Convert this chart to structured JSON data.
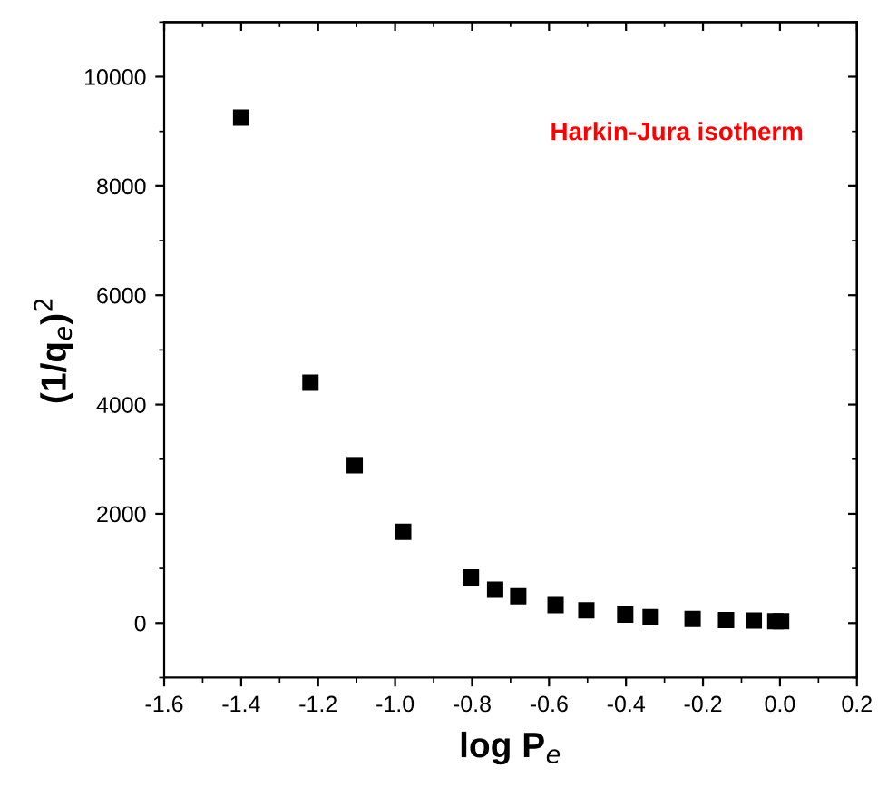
{
  "chart_data": {
    "type": "scatter",
    "xlabel": "log P$_{e}$",
    "ylabel": "(1/q$_{e}$)$^{2}$",
    "annotations": [
      "Harkin-Jura isotherm"
    ],
    "x": [
      -1.4,
      -1.22,
      -1.105,
      -0.979,
      -0.803,
      -0.74,
      -0.68,
      -0.583,
      -0.503,
      -0.402,
      -0.336,
      -0.227,
      -0.14,
      -0.068,
      -0.012,
      0.003
    ],
    "series": [
      {
        "color": "#000000",
        "values": [
          9250,
          4400,
          2890,
          1670,
          835,
          610,
          490,
          330,
          235,
          155,
          110,
          75,
          55,
          45,
          35,
          35
        ]
      }
    ],
    "marker": "square",
    "xlim": [
      -1.6,
      0.2
    ],
    "ylim": [
      -1000,
      11000
    ],
    "xticks": [
      -1.6,
      -1.4,
      -1.2,
      {
        "value": -1.0,
        "label": "-1.0"
      },
      -0.8,
      -0.6,
      -0.4,
      -0.2,
      {
        "value": 0.0,
        "label": "0.0"
      },
      0.2
    ],
    "yticks": [
      0,
      2000,
      4000,
      6000,
      8000,
      10000
    ],
    "grid": false,
    "legend": false
  }
}
